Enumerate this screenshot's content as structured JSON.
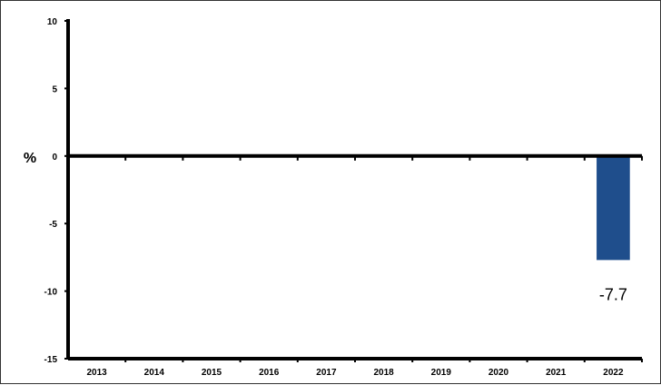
{
  "chart_data": {
    "type": "bar",
    "categories": [
      "2013",
      "2014",
      "2015",
      "2016",
      "2017",
      "2018",
      "2019",
      "2020",
      "2021",
      "2022"
    ],
    "values": [
      null,
      null,
      null,
      null,
      null,
      null,
      null,
      null,
      null,
      -7.7
    ],
    "data_labels": [
      "",
      "",
      "",
      "",
      "",
      "",
      "",
      "",
      "",
      "-7.7"
    ],
    "ylabel": "%",
    "ylim": [
      -15,
      10
    ],
    "yticks": [
      10,
      5,
      0,
      -5,
      -10,
      -15
    ],
    "grid": false,
    "bar_color": "#1f4e8c",
    "axis_color": "#000000"
  }
}
